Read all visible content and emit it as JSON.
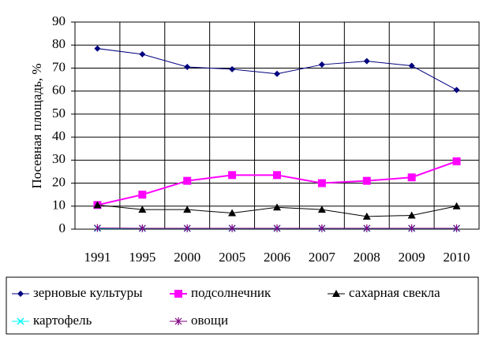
{
  "chart_data": {
    "type": "line",
    "y_label": "Посевная площадь, %",
    "categories": [
      "1991",
      "1995",
      "2000",
      "2005",
      "2006",
      "2007",
      "2008",
      "2009",
      "2010"
    ],
    "series": [
      {
        "name": "зерновые культуры",
        "color": "#000080",
        "marker": "diamond",
        "values": [
          78.5,
          76,
          70.5,
          69.5,
          67.5,
          71.5,
          73,
          71,
          60.5
        ]
      },
      {
        "name": "подсолнечник",
        "color": "#ff00ff",
        "marker": "square",
        "values": [
          10.5,
          15,
          21,
          23.5,
          23.5,
          20,
          21,
          22.5,
          29.5
        ]
      },
      {
        "name": "сахарная свекла",
        "color": "#000000",
        "marker": "triangle",
        "values": [
          10.5,
          8.5,
          8.5,
          7,
          9.5,
          8.5,
          5.5,
          6,
          10
        ]
      },
      {
        "name": "картофель",
        "color": "#00ffff",
        "marker": "x",
        "values": [
          0.3,
          0.3,
          0.3,
          0.3,
          0.3,
          0.3,
          0.3,
          0.3,
          0.3
        ]
      },
      {
        "name": "овощи",
        "color": "#800080",
        "marker": "star",
        "values": [
          0.5,
          0.4,
          0.4,
          0.4,
          0.4,
          0.4,
          0.4,
          0.4,
          0.4
        ]
      }
    ],
    "ylim": [
      0,
      90
    ],
    "yticks": [
      0,
      10,
      20,
      30,
      40,
      50,
      60,
      70,
      80,
      90
    ],
    "grid": true
  }
}
